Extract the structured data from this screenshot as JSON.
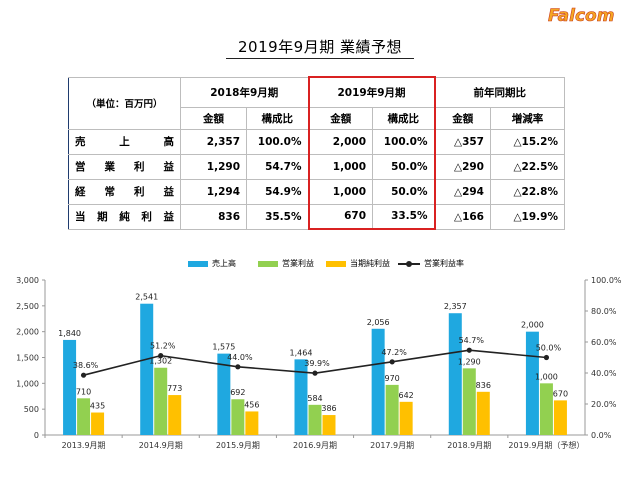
{
  "logo": {
    "text": "Falcom"
  },
  "page_title": "2019年9月期 業績予想",
  "table": {
    "unit_label": "（単位：百万円）",
    "groups": [
      "2018年9月期",
      "2019年9月期",
      "前年同期比"
    ],
    "subheaders": [
      "金額",
      "構成比",
      "金額",
      "構成比",
      "金額",
      "増減率"
    ],
    "rows": [
      {
        "label": "売上高",
        "values": [
          "2,357",
          "100.0%",
          "2,000",
          "100.0%",
          "△357",
          "△15.2%"
        ]
      },
      {
        "label": "営業利益",
        "values": [
          "1,290",
          "54.7%",
          "1,000",
          "50.0%",
          "△290",
          "△22.5%"
        ]
      },
      {
        "label": "経常利益",
        "values": [
          "1,294",
          "54.9%",
          "1,000",
          "50.0%",
          "△294",
          "△22.8%"
        ]
      },
      {
        "label": "当期純利益",
        "values": [
          "836",
          "35.5%",
          "670",
          "33.5%",
          "△166",
          "△19.9%"
        ]
      }
    ]
  },
  "chart_data": {
    "type": "bar",
    "categories": [
      "2013.9月期",
      "2014.9月期",
      "2015.9月期",
      "2016.9月期",
      "2017.9月期",
      "2018.9月期",
      "2019.9月期（予想）"
    ],
    "series": [
      {
        "name": "売上高",
        "kind": "bar",
        "axis": "left",
        "color": "#1fa8e0",
        "values": [
          1840,
          2541,
          1575,
          1464,
          2056,
          2357,
          2000
        ],
        "labels": [
          "1,840",
          "2,541",
          "1,575",
          "1,464",
          "2,056",
          "2,357",
          "2,000"
        ]
      },
      {
        "name": "営業利益",
        "kind": "bar",
        "axis": "left",
        "color": "#92d050",
        "values": [
          710,
          1302,
          692,
          584,
          970,
          1290,
          1000
        ],
        "labels": [
          "710",
          "1,302",
          "692",
          "584",
          "970",
          "1,290",
          "1,000"
        ]
      },
      {
        "name": "当期純利益",
        "kind": "bar",
        "axis": "left",
        "color": "#ffc000",
        "values": [
          435,
          773,
          456,
          386,
          642,
          836,
          670
        ],
        "labels": [
          "435",
          "773",
          "456",
          "386",
          "642",
          "836",
          "670"
        ]
      },
      {
        "name": "営業利益率",
        "kind": "line",
        "axis": "right",
        "color": "#222222",
        "values": [
          38.6,
          51.2,
          44.0,
          39.9,
          47.2,
          54.7,
          50.0
        ],
        "labels": [
          "38.6%",
          "51.2%",
          "44.0%",
          "39.9%",
          "47.2%",
          "54.7%",
          "50.0%"
        ]
      }
    ],
    "y_left": {
      "min": 0,
      "max": 3000,
      "ticks": [
        0,
        500,
        1000,
        1500,
        2000,
        2500,
        3000
      ],
      "tick_labels": [
        "0",
        "500",
        "1,000",
        "1,500",
        "2,000",
        "2,500",
        "3,000"
      ]
    },
    "y_right": {
      "min": 0,
      "max": 100,
      "ticks": [
        0,
        20,
        40,
        60,
        80,
        100
      ],
      "tick_labels": [
        "0.0%",
        "20.0%",
        "40.0%",
        "60.0%",
        "80.0%",
        "100.0%"
      ]
    },
    "legend_position": "top-center",
    "grid": false
  }
}
